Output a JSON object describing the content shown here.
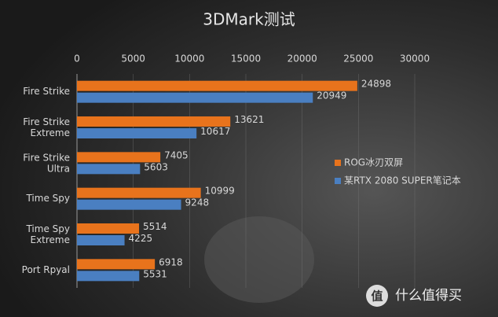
{
  "chart_data": {
    "type": "hbar",
    "title": "3DMark测试",
    "categories": [
      "Fire Strike",
      "Fire Strike\nExtreme",
      "Fire Strike\nUltra",
      "Time Spy",
      "Time Spy\nExtreme",
      "Port Rpyal"
    ],
    "series": [
      {
        "name": "ROG冰刃双屏",
        "color": "#e8731c",
        "values": [
          24898,
          13621,
          7405,
          10999,
          5514,
          6918
        ]
      },
      {
        "name": "某RTX 2080 SUPER笔记本",
        "color": "#4a7fc1",
        "values": [
          20949,
          10617,
          5603,
          9248,
          4225,
          5531
        ]
      }
    ],
    "xlim": [
      0,
      30000
    ],
    "xticks": [
      0,
      5000,
      10000,
      15000,
      20000,
      25000,
      30000
    ],
    "grid": true,
    "legend": "right",
    "watermark": "什么值得买"
  }
}
